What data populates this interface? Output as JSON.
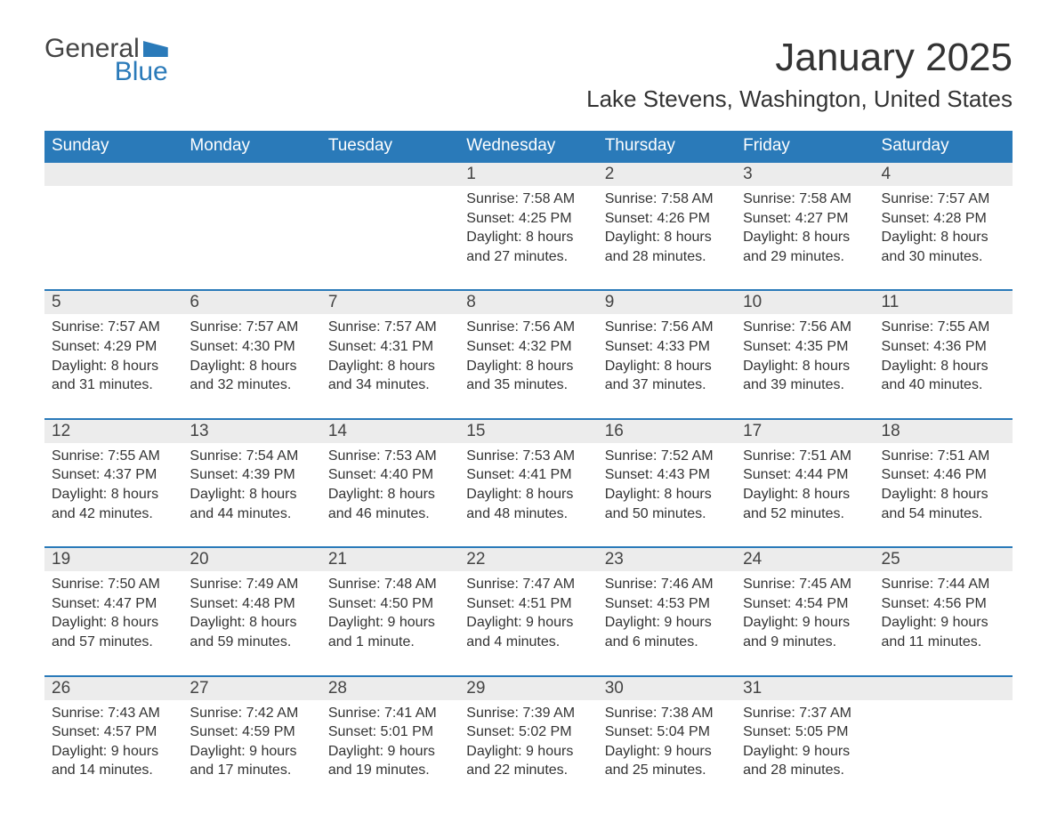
{
  "logo": {
    "word1": "General",
    "word2": "Blue"
  },
  "title": "January 2025",
  "location": "Lake Stevens, Washington, United States",
  "colors": {
    "header_bg": "#2a7ab9",
    "header_text": "#ffffff",
    "daynum_bg": "#ececec",
    "border": "#2a7ab9",
    "text": "#333333",
    "page_bg": "#ffffff"
  },
  "fonts": {
    "title_size": 44,
    "location_size": 26,
    "header_size": 19,
    "body_size": 16
  },
  "weekdays": [
    "Sunday",
    "Monday",
    "Tuesday",
    "Wednesday",
    "Thursday",
    "Friday",
    "Saturday"
  ],
  "weeks": [
    [
      {
        "day": "",
        "lines": [
          "",
          "",
          "",
          ""
        ]
      },
      {
        "day": "",
        "lines": [
          "",
          "",
          "",
          ""
        ]
      },
      {
        "day": "",
        "lines": [
          "",
          "",
          "",
          ""
        ]
      },
      {
        "day": "1",
        "lines": [
          "Sunrise: 7:58 AM",
          "Sunset: 4:25 PM",
          "Daylight: 8 hours",
          "and 27 minutes."
        ]
      },
      {
        "day": "2",
        "lines": [
          "Sunrise: 7:58 AM",
          "Sunset: 4:26 PM",
          "Daylight: 8 hours",
          "and 28 minutes."
        ]
      },
      {
        "day": "3",
        "lines": [
          "Sunrise: 7:58 AM",
          "Sunset: 4:27 PM",
          "Daylight: 8 hours",
          "and 29 minutes."
        ]
      },
      {
        "day": "4",
        "lines": [
          "Sunrise: 7:57 AM",
          "Sunset: 4:28 PM",
          "Daylight: 8 hours",
          "and 30 minutes."
        ]
      }
    ],
    [
      {
        "day": "5",
        "lines": [
          "Sunrise: 7:57 AM",
          "Sunset: 4:29 PM",
          "Daylight: 8 hours",
          "and 31 minutes."
        ]
      },
      {
        "day": "6",
        "lines": [
          "Sunrise: 7:57 AM",
          "Sunset: 4:30 PM",
          "Daylight: 8 hours",
          "and 32 minutes."
        ]
      },
      {
        "day": "7",
        "lines": [
          "Sunrise: 7:57 AM",
          "Sunset: 4:31 PM",
          "Daylight: 8 hours",
          "and 34 minutes."
        ]
      },
      {
        "day": "8",
        "lines": [
          "Sunrise: 7:56 AM",
          "Sunset: 4:32 PM",
          "Daylight: 8 hours",
          "and 35 minutes."
        ]
      },
      {
        "day": "9",
        "lines": [
          "Sunrise: 7:56 AM",
          "Sunset: 4:33 PM",
          "Daylight: 8 hours",
          "and 37 minutes."
        ]
      },
      {
        "day": "10",
        "lines": [
          "Sunrise: 7:56 AM",
          "Sunset: 4:35 PM",
          "Daylight: 8 hours",
          "and 39 minutes."
        ]
      },
      {
        "day": "11",
        "lines": [
          "Sunrise: 7:55 AM",
          "Sunset: 4:36 PM",
          "Daylight: 8 hours",
          "and 40 minutes."
        ]
      }
    ],
    [
      {
        "day": "12",
        "lines": [
          "Sunrise: 7:55 AM",
          "Sunset: 4:37 PM",
          "Daylight: 8 hours",
          "and 42 minutes."
        ]
      },
      {
        "day": "13",
        "lines": [
          "Sunrise: 7:54 AM",
          "Sunset: 4:39 PM",
          "Daylight: 8 hours",
          "and 44 minutes."
        ]
      },
      {
        "day": "14",
        "lines": [
          "Sunrise: 7:53 AM",
          "Sunset: 4:40 PM",
          "Daylight: 8 hours",
          "and 46 minutes."
        ]
      },
      {
        "day": "15",
        "lines": [
          "Sunrise: 7:53 AM",
          "Sunset: 4:41 PM",
          "Daylight: 8 hours",
          "and 48 minutes."
        ]
      },
      {
        "day": "16",
        "lines": [
          "Sunrise: 7:52 AM",
          "Sunset: 4:43 PM",
          "Daylight: 8 hours",
          "and 50 minutes."
        ]
      },
      {
        "day": "17",
        "lines": [
          "Sunrise: 7:51 AM",
          "Sunset: 4:44 PM",
          "Daylight: 8 hours",
          "and 52 minutes."
        ]
      },
      {
        "day": "18",
        "lines": [
          "Sunrise: 7:51 AM",
          "Sunset: 4:46 PM",
          "Daylight: 8 hours",
          "and 54 minutes."
        ]
      }
    ],
    [
      {
        "day": "19",
        "lines": [
          "Sunrise: 7:50 AM",
          "Sunset: 4:47 PM",
          "Daylight: 8 hours",
          "and 57 minutes."
        ]
      },
      {
        "day": "20",
        "lines": [
          "Sunrise: 7:49 AM",
          "Sunset: 4:48 PM",
          "Daylight: 8 hours",
          "and 59 minutes."
        ]
      },
      {
        "day": "21",
        "lines": [
          "Sunrise: 7:48 AM",
          "Sunset: 4:50 PM",
          "Daylight: 9 hours",
          "and 1 minute."
        ]
      },
      {
        "day": "22",
        "lines": [
          "Sunrise: 7:47 AM",
          "Sunset: 4:51 PM",
          "Daylight: 9 hours",
          "and 4 minutes."
        ]
      },
      {
        "day": "23",
        "lines": [
          "Sunrise: 7:46 AM",
          "Sunset: 4:53 PM",
          "Daylight: 9 hours",
          "and 6 minutes."
        ]
      },
      {
        "day": "24",
        "lines": [
          "Sunrise: 7:45 AM",
          "Sunset: 4:54 PM",
          "Daylight: 9 hours",
          "and 9 minutes."
        ]
      },
      {
        "day": "25",
        "lines": [
          "Sunrise: 7:44 AM",
          "Sunset: 4:56 PM",
          "Daylight: 9 hours",
          "and 11 minutes."
        ]
      }
    ],
    [
      {
        "day": "26",
        "lines": [
          "Sunrise: 7:43 AM",
          "Sunset: 4:57 PM",
          "Daylight: 9 hours",
          "and 14 minutes."
        ]
      },
      {
        "day": "27",
        "lines": [
          "Sunrise: 7:42 AM",
          "Sunset: 4:59 PM",
          "Daylight: 9 hours",
          "and 17 minutes."
        ]
      },
      {
        "day": "28",
        "lines": [
          "Sunrise: 7:41 AM",
          "Sunset: 5:01 PM",
          "Daylight: 9 hours",
          "and 19 minutes."
        ]
      },
      {
        "day": "29",
        "lines": [
          "Sunrise: 7:39 AM",
          "Sunset: 5:02 PM",
          "Daylight: 9 hours",
          "and 22 minutes."
        ]
      },
      {
        "day": "30",
        "lines": [
          "Sunrise: 7:38 AM",
          "Sunset: 5:04 PM",
          "Daylight: 9 hours",
          "and 25 minutes."
        ]
      },
      {
        "day": "31",
        "lines": [
          "Sunrise: 7:37 AM",
          "Sunset: 5:05 PM",
          "Daylight: 9 hours",
          "and 28 minutes."
        ]
      },
      {
        "day": "",
        "lines": [
          "",
          "",
          "",
          ""
        ]
      }
    ]
  ]
}
